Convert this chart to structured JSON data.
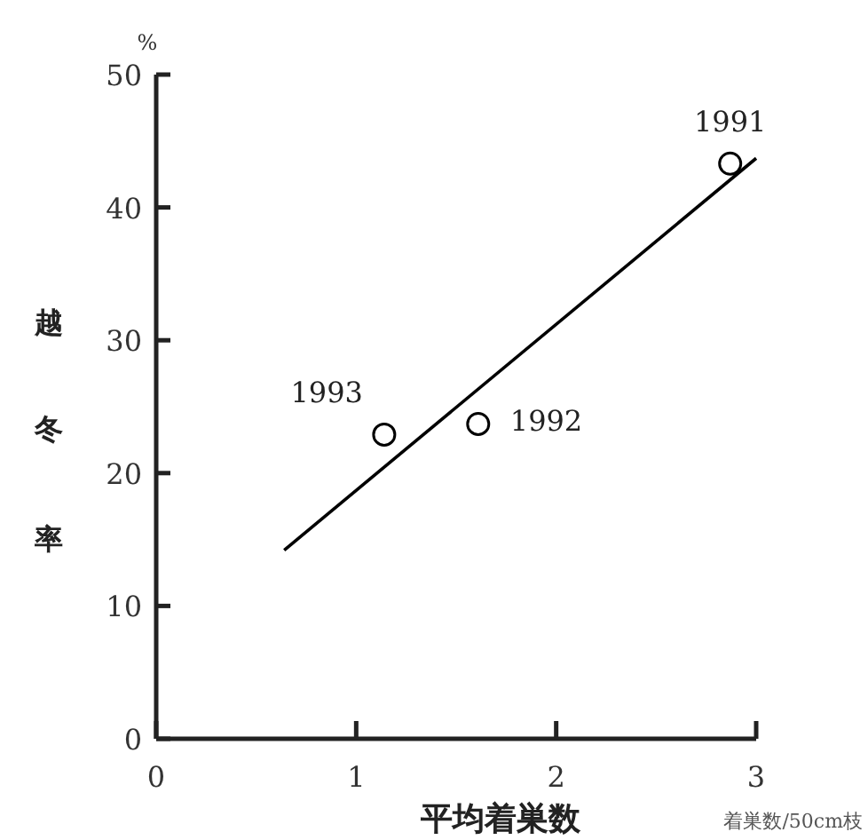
{
  "chart_data": {
    "type": "scatter",
    "xlabel": "平均着巣数",
    "ylabel": "越冬率",
    "annotations": [
      {
        "text": "1991",
        "x": 2.87,
        "y": 43.3
      },
      {
        "text": "1992",
        "x": 1.61,
        "y": 23.7
      },
      {
        "text": "1993",
        "x": 1.14,
        "y": 22.9
      },
      "%",
      "着巣数/50cm枝"
    ],
    "series": [
      {
        "marker": "circle",
        "color": "#000000",
        "x": [
          2.87,
          1.61,
          1.14
        ],
        "values": [
          43.3,
          23.7,
          22.9
        ]
      },
      {
        "type": "line",
        "color": "#000000",
        "x": [
          0.64,
          3.0
        ],
        "values": [
          14.2,
          43.7
        ]
      }
    ],
    "xlim": [
      0,
      3
    ],
    "ylim": [
      0,
      50
    ],
    "xticks": [
      0,
      1,
      2,
      3
    ],
    "yticks": [
      0,
      10,
      20,
      30,
      40,
      50
    ]
  }
}
